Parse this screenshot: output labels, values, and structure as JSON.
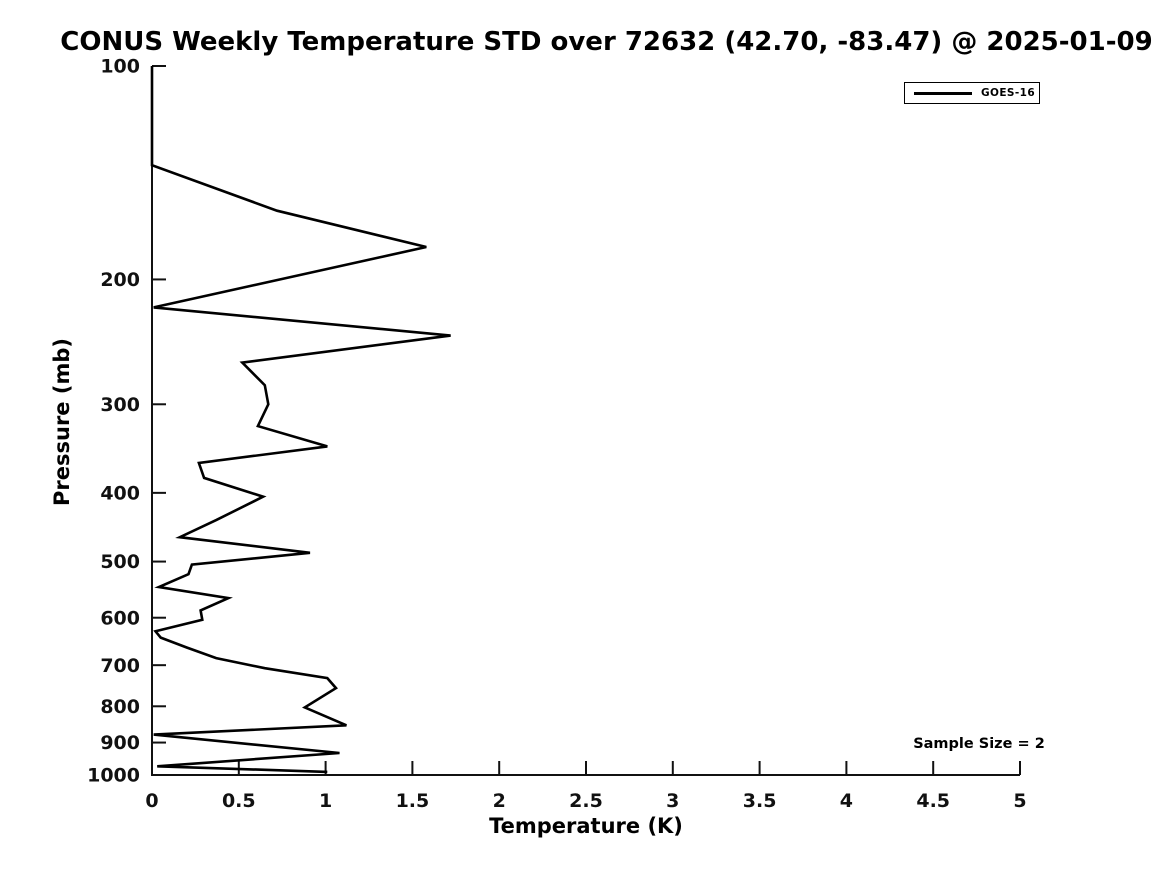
{
  "chart_data": {
    "type": "line",
    "title": "CONUS Weekly Temperature STD over 72632 (42.70, -83.47) @ 2025-01-09",
    "xlabel": "Temperature (K)",
    "ylabel": "Pressure (mb)",
    "xlim": [
      0,
      5
    ],
    "ylim": [
      100,
      1000
    ],
    "x_ticks": [
      0,
      0.5,
      1,
      1.5,
      2,
      2.5,
      3,
      3.5,
      4,
      4.5,
      5
    ],
    "y_ticks": [
      100,
      200,
      300,
      400,
      500,
      600,
      700,
      800,
      900,
      1000
    ],
    "y_scale": "log",
    "y_inverted": true,
    "grid": false,
    "line_color": "#000000",
    "legend": {
      "label": "GOES-16",
      "position": "top-right",
      "line_color": "#000000"
    },
    "annotation": {
      "text": "Sample Size = 2"
    },
    "series": [
      {
        "name": "GOES-16",
        "color": "#000000",
        "point_format": [
          "temperature_K",
          "pressure_mb"
        ],
        "points": [
          [
            0.0,
            100
          ],
          [
            0.0,
            138
          ],
          [
            0.72,
            160
          ],
          [
            1.58,
            180
          ],
          [
            0.01,
            219
          ],
          [
            1.72,
            240
          ],
          [
            0.52,
            262
          ],
          [
            0.65,
            282
          ],
          [
            0.67,
            300
          ],
          [
            0.61,
            322
          ],
          [
            1.01,
            344
          ],
          [
            0.27,
            363
          ],
          [
            0.3,
            381
          ],
          [
            0.64,
            405
          ],
          [
            0.37,
            437
          ],
          [
            0.16,
            462
          ],
          [
            0.91,
            486
          ],
          [
            0.23,
            505
          ],
          [
            0.21,
            521
          ],
          [
            0.04,
            543
          ],
          [
            0.44,
            563
          ],
          [
            0.28,
            586
          ],
          [
            0.29,
            604
          ],
          [
            0.02,
            627
          ],
          [
            0.05,
            640
          ],
          [
            0.2,
            661
          ],
          [
            0.37,
            684
          ],
          [
            0.65,
            707
          ],
          [
            1.01,
            730
          ],
          [
            1.06,
            754
          ],
          [
            0.88,
            803
          ],
          [
            1.12,
            851
          ],
          [
            0.01,
            877
          ],
          [
            1.08,
            931
          ],
          [
            0.03,
            972
          ],
          [
            1.01,
            990
          ]
        ]
      }
    ]
  }
}
